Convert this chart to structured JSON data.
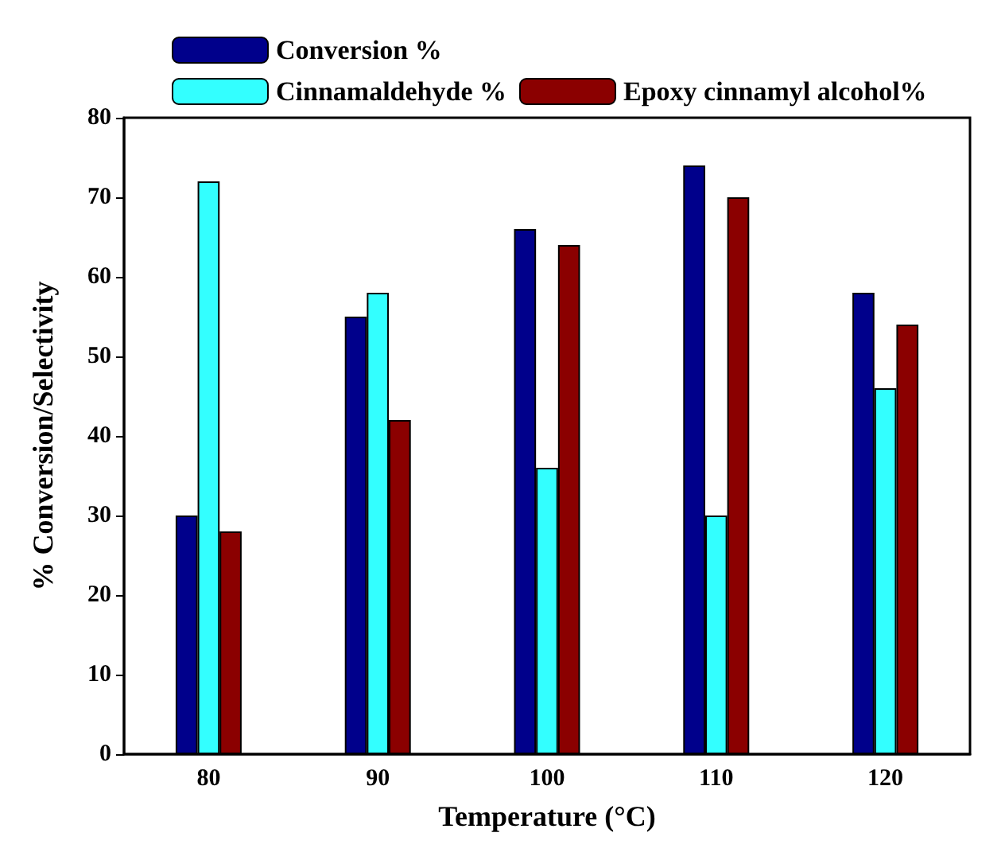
{
  "chart_data": {
    "type": "bar",
    "xlabel": "Temperature (°C)",
    "ylabel": "% Conversion/Selectivity",
    "categories": [
      "80",
      "90",
      "100",
      "110",
      "120"
    ],
    "series": [
      {
        "name": "Conversion %",
        "color": "#00008b",
        "values": [
          30,
          55,
          66,
          74,
          58
        ]
      },
      {
        "name": "Cinnamaldehyde %",
        "color": "#33ffff",
        "values": [
          72,
          58,
          36,
          30,
          46
        ]
      },
      {
        "name": "Epoxy cinnamyl alcohol%",
        "color": "#8b0000",
        "values": [
          28,
          42,
          64,
          70,
          54
        ]
      }
    ],
    "ylim": [
      0,
      80
    ],
    "yticks": [
      0,
      10,
      20,
      30,
      40,
      50,
      60,
      70,
      80
    ],
    "grid": false,
    "legend": "top left"
  }
}
